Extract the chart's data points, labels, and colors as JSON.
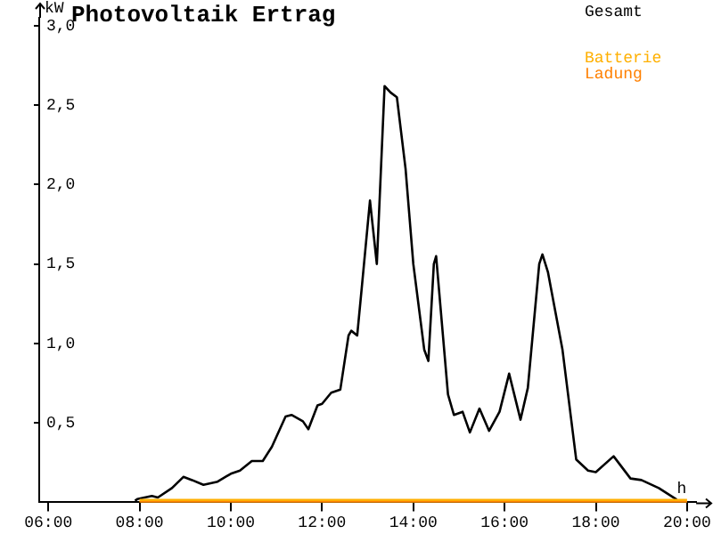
{
  "chart_data": {
    "type": "line",
    "title": "Photovoltaik Ertrag",
    "xlabel": "h",
    "ylabel": "kW",
    "xlim": [
      5.8,
      20.2
    ],
    "xticks": [
      {
        "value": 6,
        "label": "06:00"
      },
      {
        "value": 8,
        "label": "08:00"
      },
      {
        "value": 10,
        "label": "10:00"
      },
      {
        "value": 12,
        "label": "12:00"
      },
      {
        "value": 14,
        "label": "14:00"
      },
      {
        "value": 16,
        "label": "16:00"
      },
      {
        "value": 18,
        "label": "18:00"
      },
      {
        "value": 20,
        "label": "20:00"
      }
    ],
    "ylim": [
      0,
      3.05
    ],
    "yticks": [
      {
        "value": 0.5,
        "label": "0,5"
      },
      {
        "value": 1,
        "label": "1,0"
      },
      {
        "value": 1.5,
        "label": "1,5"
      },
      {
        "value": 2,
        "label": "2,0"
      },
      {
        "value": 2.5,
        "label": "2,5"
      },
      {
        "value": 3,
        "label": "3,0"
      }
    ],
    "grid": false,
    "legend": "top right",
    "marker": "none",
    "line_style": "solid",
    "series": [
      {
        "name": "Gesamt",
        "color": "#000000",
        "x": [
          7.9,
          7.95,
          8.27,
          8.4,
          8.71,
          8.96,
          9.15,
          9.4,
          9.71,
          10.0,
          10.2,
          10.46,
          10.7,
          10.9,
          11.2,
          11.33,
          11.58,
          11.7,
          11.9,
          12.0,
          12.2,
          12.4,
          12.58,
          12.64,
          12.77,
          12.87,
          13.05,
          13.2,
          13.37,
          13.5,
          13.64,
          13.83,
          14.0,
          14.24,
          14.33,
          14.45,
          14.5,
          14.76,
          14.89,
          15.08,
          15.24,
          15.45,
          15.66,
          15.89,
          16.1,
          16.35,
          16.51,
          16.76,
          16.83,
          16.95,
          17.27,
          17.57,
          17.83,
          18.0,
          18.39,
          18.76,
          19.0,
          19.38,
          19.76,
          19.8
        ],
        "values": [
          0.01,
          0.02,
          0.04,
          0.03,
          0.09,
          0.16,
          0.14,
          0.11,
          0.13,
          0.18,
          0.2,
          0.26,
          0.26,
          0.35,
          0.54,
          0.55,
          0.51,
          0.46,
          0.61,
          0.62,
          0.69,
          0.71,
          1.05,
          1.08,
          1.05,
          1.35,
          1.9,
          1.5,
          2.62,
          2.58,
          2.55,
          2.1,
          1.5,
          0.96,
          0.89,
          1.5,
          1.55,
          0.68,
          0.55,
          0.57,
          0.44,
          0.59,
          0.45,
          0.57,
          0.81,
          0.52,
          0.72,
          1.5,
          1.56,
          1.45,
          0.96,
          0.27,
          0.2,
          0.19,
          0.29,
          0.15,
          0.14,
          0.09,
          0.02,
          0
        ]
      },
      {
        "name": "Batterie",
        "color": "#ffb000",
        "x": [
          8,
          20
        ],
        "values": [
          0,
          0
        ]
      },
      {
        "name": "Ladung",
        "color": "#ff8000",
        "x": [
          8,
          20
        ],
        "values": [
          0,
          0
        ]
      }
    ]
  }
}
